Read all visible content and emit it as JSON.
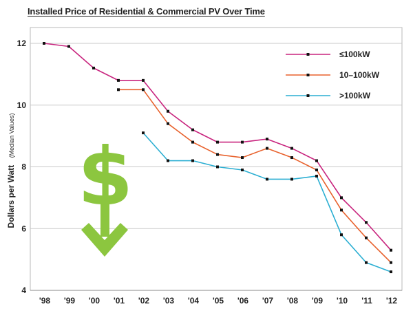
{
  "chart_data": {
    "type": "line",
    "title": "Installed Price of Residential & Commercial PV Over Time",
    "ylabel": "Dollars per Watt",
    "ylabel_note": "(Median Values)",
    "xlabel": "",
    "ylim": [
      4,
      12.5
    ],
    "yticks": [
      4,
      6,
      8,
      10,
      12
    ],
    "categories": [
      "'98",
      "'99",
      "'00",
      "'01",
      "'02",
      "'03",
      "'04",
      "'05",
      "'06",
      "'07",
      "'08",
      "'09",
      "'10",
      "'11",
      "'12"
    ],
    "grid": true,
    "series": [
      {
        "name": "≤100kW",
        "color": "#c8247e",
        "values": [
          12.0,
          11.9,
          11.2,
          10.8,
          10.8,
          9.8,
          9.2,
          8.8,
          8.8,
          8.9,
          8.6,
          8.2,
          7.0,
          6.2,
          5.3
        ]
      },
      {
        "name": "10–100kW",
        "color": "#e8612c",
        "values": [
          null,
          null,
          null,
          10.5,
          10.5,
          9.4,
          8.8,
          8.4,
          8.3,
          8.6,
          8.3,
          7.9,
          6.6,
          5.7,
          4.9
        ]
      },
      {
        "name": ">100kW",
        "color": "#2aaed2",
        "values": [
          null,
          null,
          null,
          null,
          9.1,
          8.2,
          8.2,
          8.0,
          7.9,
          7.6,
          7.6,
          7.7,
          5.8,
          4.9,
          4.6
        ]
      }
    ],
    "legend_position": "top-right",
    "annotation": {
      "symbol": "$",
      "color": "#8cc63f"
    }
  }
}
